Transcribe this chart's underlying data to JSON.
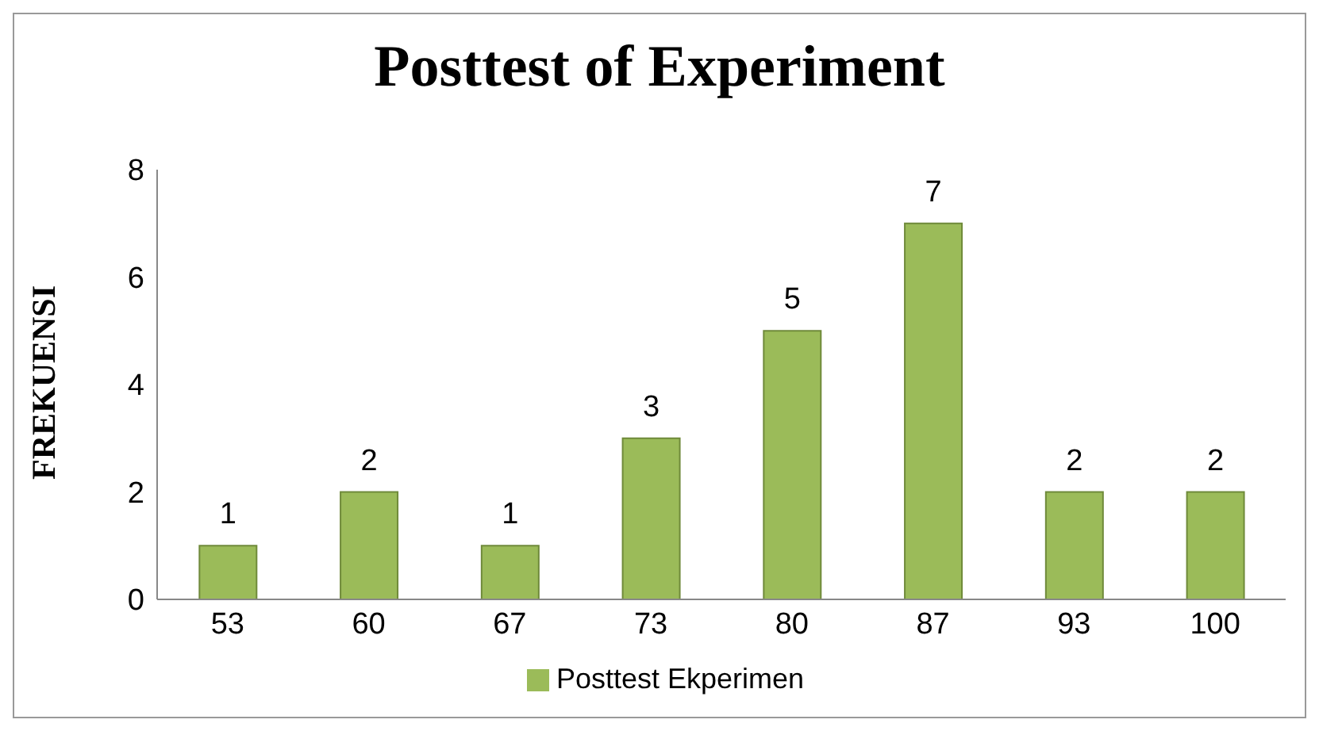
{
  "chart_data": {
    "type": "bar",
    "title": "Posttest of Experiment",
    "ylabel": "FREKUENSI",
    "categories": [
      "53",
      "60",
      "67",
      "73",
      "80",
      "87",
      "93",
      "100"
    ],
    "series": [
      {
        "name": "Posttest Ekperimen",
        "color": "#9bbb59",
        "values": [
          1,
          2,
          1,
          3,
          5,
          7,
          2,
          2
        ]
      }
    ],
    "ylim": [
      0,
      8
    ],
    "yticks": [
      0,
      2,
      4,
      6,
      8
    ],
    "data_labels": true,
    "legend": "bottom",
    "grid": false
  }
}
